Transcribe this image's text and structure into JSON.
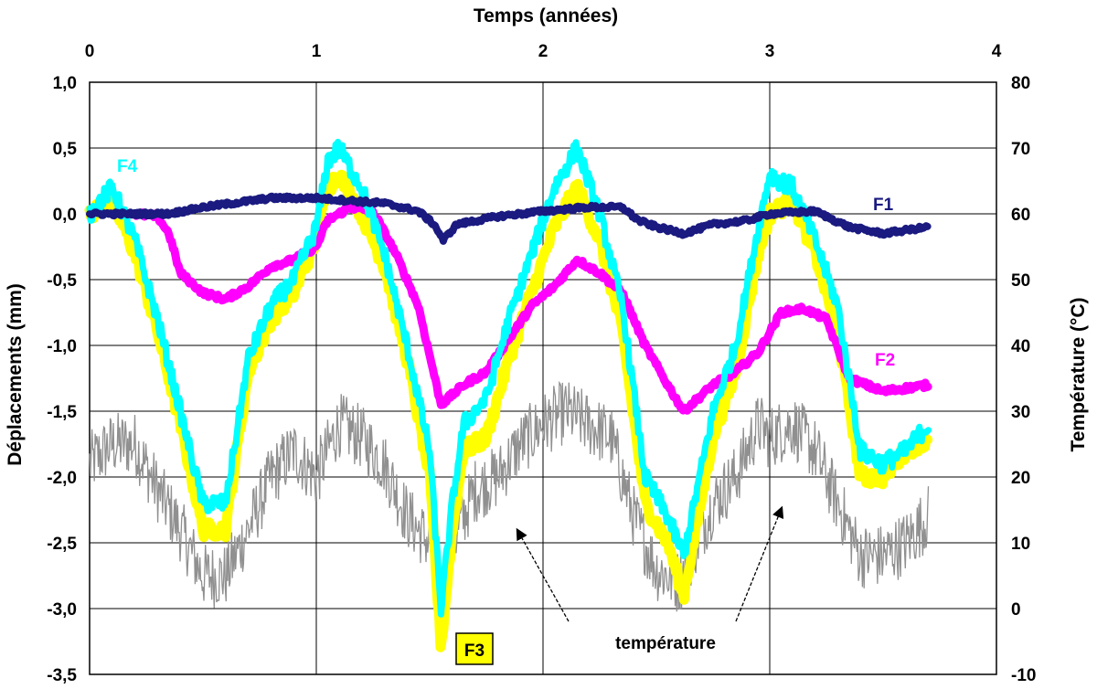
{
  "chart_data": {
    "type": "line",
    "title": "",
    "top_xlabel": "Temps (années)",
    "ylabel_left": "Déplacements (mm)",
    "ylabel_right": "Température (°C)",
    "xlim": [
      0,
      4
    ],
    "ylim_left": [
      -3.5,
      1.0
    ],
    "ylim_right": [
      -10,
      80
    ],
    "x_ticks": [
      "0",
      "1",
      "2",
      "3",
      "4"
    ],
    "y_left_ticks": [
      "1,0",
      "0,5",
      "0,0",
      "-0,5",
      "-1,0",
      "-1,5",
      "-2,0",
      "-2,5",
      "-3,0",
      "-3,5"
    ],
    "y_right_ticks": [
      "80",
      "70",
      "60",
      "50",
      "40",
      "30",
      "20",
      "10",
      "0",
      "-10"
    ],
    "grid": true,
    "colors": {
      "F1": "#1a1a80",
      "F2": "#ff00ff",
      "F3": "#ffff00",
      "F4": "#00ffff",
      "temperature": "#909090"
    },
    "series": [
      {
        "name": "F1",
        "axis": "left",
        "x": [
          0.0,
          0.2,
          0.35,
          0.5,
          0.8,
          1.0,
          1.15,
          1.3,
          1.45,
          1.52,
          1.56,
          1.62,
          1.8,
          2.0,
          2.2,
          2.35,
          2.42,
          2.5,
          2.62,
          2.75,
          2.9,
          3.0,
          3.2,
          3.35,
          3.5,
          3.7
        ],
        "values": [
          0.0,
          0.0,
          0.0,
          0.05,
          0.12,
          0.12,
          0.1,
          0.08,
          0.02,
          -0.08,
          -0.2,
          -0.08,
          -0.02,
          0.02,
          0.05,
          0.05,
          -0.05,
          -0.1,
          -0.15,
          -0.08,
          -0.05,
          0.0,
          0.02,
          -0.1,
          -0.15,
          -0.1
        ]
      },
      {
        "name": "F2",
        "axis": "left",
        "x": [
          0.2,
          0.3,
          0.35,
          0.4,
          0.5,
          0.6,
          0.7,
          0.8,
          0.9,
          1.0,
          1.05,
          1.15,
          1.25,
          1.35,
          1.45,
          1.55,
          1.65,
          1.75,
          1.85,
          1.95,
          2.05,
          2.15,
          2.25,
          2.35,
          2.45,
          2.55,
          2.62,
          2.75,
          2.85,
          2.95,
          3.05,
          3.15,
          3.25,
          3.35,
          3.5,
          3.7
        ],
        "values": [
          0.0,
          -0.02,
          -0.15,
          -0.45,
          -0.6,
          -0.65,
          -0.55,
          -0.4,
          -0.35,
          -0.25,
          -0.05,
          0.05,
          0.02,
          -0.3,
          -0.7,
          -1.45,
          -1.3,
          -1.2,
          -0.95,
          -0.7,
          -0.55,
          -0.35,
          -0.45,
          -0.6,
          -1.0,
          -1.3,
          -1.5,
          -1.3,
          -1.2,
          -1.05,
          -0.75,
          -0.72,
          -0.8,
          -1.25,
          -1.35,
          -1.3
        ]
      },
      {
        "name": "F3",
        "axis": "left",
        "x": [
          0.0,
          0.1,
          0.2,
          0.3,
          0.4,
          0.5,
          0.6,
          0.7,
          0.8,
          0.9,
          1.0,
          1.05,
          1.1,
          1.2,
          1.3,
          1.4,
          1.5,
          1.55,
          1.6,
          1.65,
          1.75,
          1.85,
          1.95,
          2.05,
          2.15,
          2.25,
          2.35,
          2.45,
          2.55,
          2.62,
          2.75,
          2.85,
          2.95,
          3.0,
          3.1,
          3.2,
          3.3,
          3.4,
          3.5,
          3.6,
          3.7
        ],
        "values": [
          0.0,
          0.1,
          -0.3,
          -0.9,
          -1.6,
          -2.4,
          -2.4,
          -1.2,
          -0.8,
          -0.6,
          -0.2,
          0.2,
          0.3,
          0.0,
          -0.4,
          -1.1,
          -2.0,
          -3.3,
          -2.4,
          -1.8,
          -1.7,
          -1.1,
          -0.6,
          -0.1,
          0.2,
          -0.2,
          -0.9,
          -2.2,
          -2.5,
          -2.9,
          -1.7,
          -1.2,
          -0.3,
          0.0,
          0.1,
          -0.3,
          -0.9,
          -2.0,
          -2.0,
          -1.8,
          -1.7
        ]
      },
      {
        "name": "F4",
        "axis": "left",
        "x": [
          0.0,
          0.1,
          0.2,
          0.3,
          0.4,
          0.5,
          0.6,
          0.7,
          0.8,
          0.9,
          1.0,
          1.05,
          1.1,
          1.2,
          1.3,
          1.4,
          1.5,
          1.55,
          1.6,
          1.65,
          1.75,
          1.85,
          1.95,
          2.05,
          2.15,
          2.25,
          2.35,
          2.45,
          2.55,
          2.62,
          2.75,
          2.85,
          2.95,
          3.0,
          3.1,
          3.2,
          3.3,
          3.4,
          3.5,
          3.6,
          3.7
        ],
        "values": [
          0.0,
          0.2,
          -0.2,
          -0.8,
          -1.5,
          -2.2,
          -2.2,
          -1.1,
          -0.7,
          -0.5,
          -0.1,
          0.4,
          0.5,
          0.2,
          -0.3,
          -1.0,
          -1.8,
          -3.0,
          -2.2,
          -1.6,
          -1.4,
          -0.8,
          -0.3,
          0.2,
          0.5,
          0.0,
          -0.7,
          -2.0,
          -2.3,
          -2.6,
          -1.5,
          -1.0,
          -0.1,
          0.3,
          0.2,
          -0.2,
          -0.7,
          -1.8,
          -1.9,
          -1.8,
          -1.6
        ]
      },
      {
        "name": "température",
        "axis": "right",
        "x": [
          0.0,
          0.1,
          0.2,
          0.3,
          0.4,
          0.5,
          0.6,
          0.7,
          0.8,
          0.9,
          1.0,
          1.1,
          1.2,
          1.3,
          1.4,
          1.5,
          1.55,
          1.6,
          1.7,
          1.8,
          1.9,
          2.0,
          2.1,
          2.2,
          2.3,
          2.4,
          2.5,
          2.6,
          2.65,
          2.75,
          2.85,
          2.95,
          3.0,
          3.1,
          3.2,
          3.3,
          3.4,
          3.5,
          3.6,
          3.7
        ],
        "values": [
          22,
          25,
          25,
          18,
          12,
          5,
          5,
          12,
          20,
          24,
          20,
          28,
          26,
          22,
          14,
          10,
          3,
          10,
          18,
          20,
          25,
          28,
          30,
          28,
          26,
          14,
          6,
          4,
          8,
          16,
          20,
          28,
          26,
          28,
          24,
          16,
          8,
          8,
          10,
          14
        ]
      }
    ],
    "annotations": {
      "F1": "F1",
      "F2": "F2",
      "F3": "F3",
      "F4": "F4",
      "temperature": "température"
    }
  }
}
